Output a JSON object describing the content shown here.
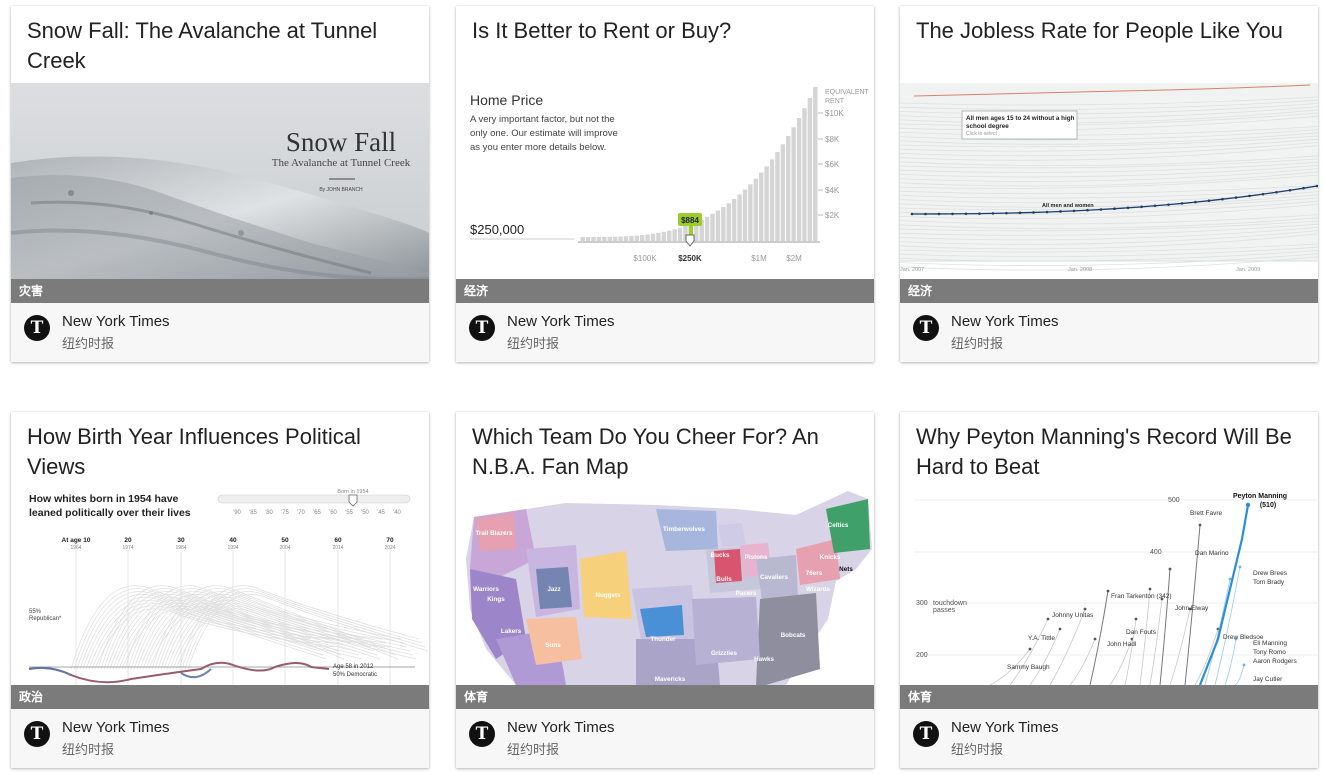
{
  "cards": [
    {
      "title": "Snow Fall: The Avalanche at Tunnel Creek",
      "category": "灾害",
      "source": "New York Times",
      "source_sub": "纽约时报",
      "image": {
        "heading": "Snow Fall",
        "subheading": "The Avalanche at Tunnel Creek",
        "byline": "By JOHN BRANCH"
      }
    },
    {
      "title": "Is It Better to Rent or Buy?",
      "category": "经济",
      "source": "New York Times",
      "source_sub": "纽约时报",
      "image": {
        "heading": "Home Price",
        "desc_lines": [
          "A very important factor, but not the",
          "only one. Our estimate will improve",
          "as you enter more details below."
        ],
        "price": "$250,000",
        "marker": "$884",
        "axis_title_lines": [
          "EQUIVALENT",
          "RENT"
        ],
        "y_ticks": [
          "$10K",
          "$8K",
          "$6K",
          "$4K",
          "$2K"
        ],
        "x_ticks": [
          "$100K",
          "$250K",
          "$1M",
          "$2M"
        ]
      }
    },
    {
      "title": "The Jobless Rate for People Like You",
      "category": "经济",
      "source": "New York Times",
      "source_sub": "纽约时报",
      "image": {
        "tooltip_lines": [
          "All men ages 15 to 24 without a high",
          "school degree"
        ],
        "tooltip_hint": "Click to select",
        "line_label": "All men and women",
        "x_ticks": [
          "Jan. 2007",
          "Jan. 2008",
          "Jan. 2009"
        ]
      }
    },
    {
      "title": "How Birth Year Influences Political Views",
      "category": "政治",
      "source": "New York Times",
      "source_sub": "纽约时报",
      "image": {
        "heading_lines": [
          "How whites born in 1954 have",
          "leaned politically over their lives"
        ],
        "slider_label": "Born in 1954",
        "slider_ticks": [
          "'90",
          "'85",
          "'80",
          "'75",
          "'70",
          "'65",
          "'60",
          "'55",
          "'50",
          "'45",
          "'40"
        ],
        "ages": [
          {
            "age": "At age 10",
            "year": "1964"
          },
          {
            "age": "20",
            "year": "1974"
          },
          {
            "age": "30",
            "year": "1984"
          },
          {
            "age": "40",
            "year": "1994"
          },
          {
            "age": "50",
            "year": "2004"
          },
          {
            "age": "60",
            "year": "2014"
          },
          {
            "age": "70",
            "year": "2024"
          }
        ],
        "left_label_lines": [
          "55%",
          "Republican*"
        ],
        "right_label_lines": [
          "Age 58 in 2012",
          "50% Democratic"
        ]
      }
    },
    {
      "title": "Which Team Do You Cheer For? An N.B.A. Fan Map",
      "category": "体育",
      "source": "New York Times",
      "source_sub": "纽约时报",
      "image": {
        "teams": [
          "Trail Blazers",
          "Timberwolves",
          "Celtics",
          "Bucks",
          "Pistons",
          "Knicks",
          "Nets",
          "Warriors",
          "Kings",
          "Jazz",
          "Nuggets",
          "Bulls",
          "Cavaliers",
          "Pacers",
          "76ers",
          "Wizards",
          "Lakers",
          "Suns",
          "Thunder",
          "Grizzlies",
          "Hawks",
          "Bobcats",
          "Mavericks"
        ]
      }
    },
    {
      "title": "Why Peyton Manning's Record Will Be Hard to Beat",
      "category": "体育",
      "source": "New York Times",
      "source_sub": "纽约时报",
      "image": {
        "y_ticks": [
          "500",
          "400",
          "300",
          "200"
        ],
        "axis_note_lines": [
          "touchdown",
          "passes"
        ],
        "highlight_lines": [
          "Peyton Manning",
          "(510)"
        ],
        "players": [
          "Brett Favre",
          "Dan Marino",
          "Drew Brees",
          "Tom Brady",
          "Fran Tarkenton (342)",
          "John Elway",
          "Johnny Unitas",
          "Dan Fouts",
          "Y.A. Tittle",
          "John Hadl",
          "Drew Bledsoe",
          "Eli Manning",
          "Tony Romo",
          "Aaron Rodgers",
          "Sammy Baugh",
          "Jay Cutler"
        ]
      }
    }
  ]
}
